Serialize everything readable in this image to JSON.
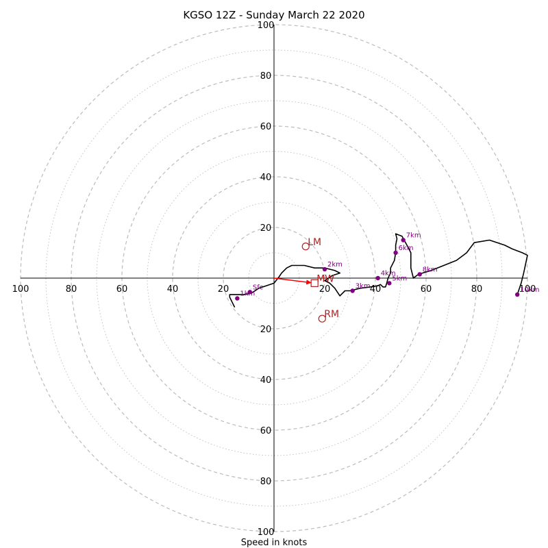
{
  "chart_data": {
    "type": "line",
    "title": "KGSO 12Z - Sunday March 22 2020",
    "xlabel": "Speed in knots",
    "ring_max": 100,
    "ring_step": 20,
    "tick_labels": [
      "100",
      "80",
      "60",
      "40",
      "20",
      "20",
      "40",
      "60",
      "80",
      "100"
    ],
    "colors": {
      "trace": "#000000",
      "height": "#800080",
      "motion": "#b22222",
      "mean_wind": "#ff0000",
      "grid": "#bbbbbb"
    },
    "hodograph": {
      "u": [
        -15.5,
        -17.5,
        -17.5,
        -12.0,
        -9.0,
        -6.0,
        -3.0,
        0,
        2.0,
        3.0,
        5.0,
        7.0,
        12.0,
        16.0,
        20.0,
        24.0,
        26.0,
        23.0,
        20.0,
        22.0,
        24.0,
        26.0,
        27.0,
        28.0,
        30.0,
        34.0,
        38.0,
        41.0,
        42.0,
        43.0,
        44.0,
        44.5,
        45.0,
        46.0,
        46.0,
        47.5,
        48.0,
        48.0,
        48.5,
        48.0,
        50.5,
        53.0,
        54.0,
        54.0,
        54.0,
        54.5,
        55.0,
        57.0,
        62.0,
        67.0,
        72.0,
        76.0,
        79.0,
        85.0,
        91.0,
        94.0,
        98.0,
        100.0,
        98.5,
        97.5,
        96.0
      ],
      "v": [
        -11.5,
        -7.5,
        -6.5,
        -6.5,
        -6.0,
        -4.0,
        -3.0,
        -2.0,
        0.5,
        2.0,
        4.0,
        5.0,
        5.0,
        4.0,
        4.0,
        3.0,
        2.0,
        1.0,
        -1.0,
        -2.0,
        -4.0,
        -7.0,
        -6.0,
        -5.0,
        -5.0,
        -4.0,
        -3.5,
        -3.0,
        -2.5,
        -3.5,
        -3.5,
        -2.0,
        0,
        2.0,
        4.0,
        7.0,
        10.0,
        13.0,
        15.5,
        17.5,
        16.5,
        12.0,
        10.0,
        7.0,
        4.0,
        2.0,
        0,
        1.5,
        3.0,
        5.0,
        7.0,
        10.0,
        14.0,
        15.0,
        13.0,
        11.5,
        10.0,
        9.0,
        2.0,
        -2.0,
        -6.5
      ],
      "heights": [
        {
          "label": "Sfc",
          "u": -9.5,
          "v": -5.5
        },
        {
          "label": "1km",
          "u": -14.5,
          "v": -8.0
        },
        {
          "label": "2km",
          "u": 20.0,
          "v": 3.5
        },
        {
          "label": "3km",
          "u": 31.0,
          "v": -5.0
        },
        {
          "label": "4km",
          "u": 41.0,
          "v": 0
        },
        {
          "label": "5km",
          "u": 45.5,
          "v": -2.0
        },
        {
          "label": "6km",
          "u": 48.0,
          "v": 10.0
        },
        {
          "label": "7km",
          "u": 51.0,
          "v": 15.0
        },
        {
          "label": "8km",
          "u": 57.5,
          "v": 1.5
        },
        {
          "label": "10km",
          "u": 96.0,
          "v": -6.5
        }
      ]
    },
    "storm_motion": {
      "lm": {
        "label": "LM",
        "u": 12.5,
        "v": 12.5
      },
      "rm": {
        "label": "RM",
        "u": 19.0,
        "v": -16.0
      },
      "mw": {
        "label": "MW",
        "u": 16.0,
        "v": -2.0
      }
    }
  }
}
